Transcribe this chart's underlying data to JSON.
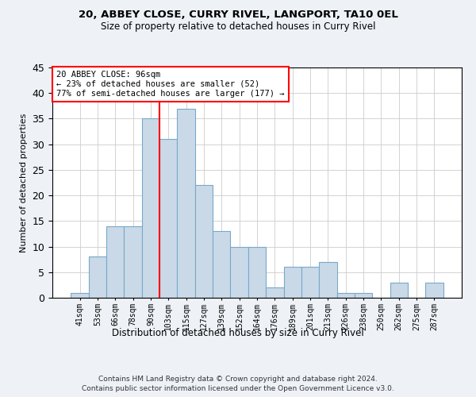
{
  "title1": "20, ABBEY CLOSE, CURRY RIVEL, LANGPORT, TA10 0EL",
  "title2": "Size of property relative to detached houses in Curry Rivel",
  "xlabel": "Distribution of detached houses by size in Curry Rivel",
  "ylabel": "Number of detached properties",
  "footer1": "Contains HM Land Registry data © Crown copyright and database right 2024.",
  "footer2": "Contains public sector information licensed under the Open Government Licence v3.0.",
  "annotation_title": "20 ABBEY CLOSE: 96sqm",
  "annotation_line1": "← 23% of detached houses are smaller (52)",
  "annotation_line2": "77% of semi-detached houses are larger (177) →",
  "bar_labels": [
    "41sqm",
    "53sqm",
    "66sqm",
    "78sqm",
    "90sqm",
    "103sqm",
    "115sqm",
    "127sqm",
    "139sqm",
    "152sqm",
    "164sqm",
    "176sqm",
    "189sqm",
    "201sqm",
    "213sqm",
    "226sqm",
    "238sqm",
    "250sqm",
    "262sqm",
    "275sqm",
    "287sqm"
  ],
  "bar_values": [
    1,
    8,
    14,
    14,
    35,
    31,
    37,
    22,
    13,
    10,
    10,
    2,
    6,
    6,
    7,
    1,
    1,
    0,
    3,
    0,
    3
  ],
  "bar_color": "#c9d9e8",
  "bar_edge_color": "#7aa8c8",
  "reference_line_color": "red",
  "ylim": [
    0,
    45
  ],
  "yticks": [
    0,
    5,
    10,
    15,
    20,
    25,
    30,
    35,
    40,
    45
  ],
  "bg_color": "#eef2f7",
  "plot_bg_color": "#ffffff",
  "annotation_box_edge": "red",
  "title1_fontsize": 9.5,
  "title2_fontsize": 8.5
}
